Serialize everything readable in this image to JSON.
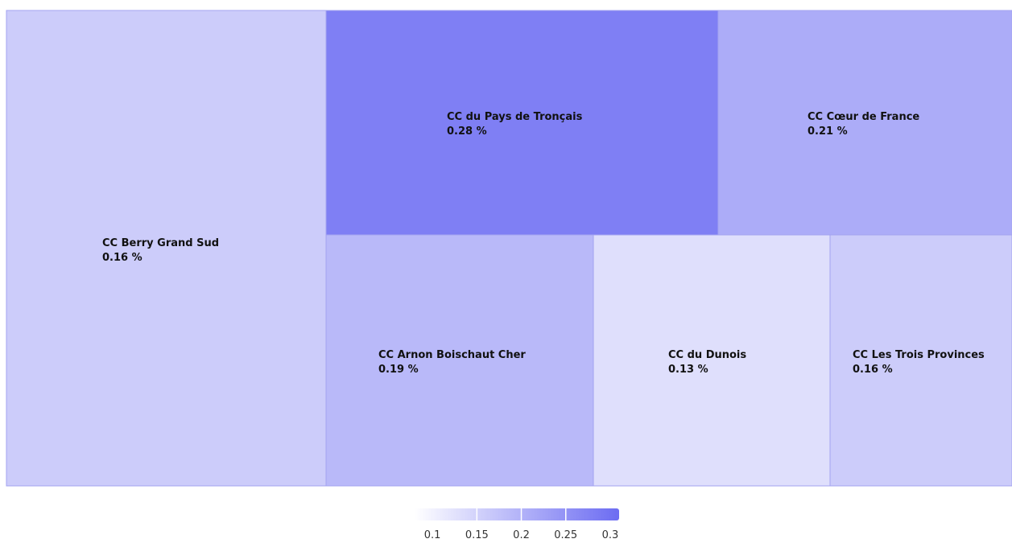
{
  "chart_data": {
    "type": "treemap",
    "title": "",
    "value_suffix": " %",
    "items": [
      {
        "name": "CC Berry Grand Sud",
        "value": 0.16,
        "label": "0.16 %"
      },
      {
        "name": "CC du Pays de Tronçais",
        "value": 0.28,
        "label": "0.28 %"
      },
      {
        "name": "CC Cœur de France",
        "value": 0.21,
        "label": "0.21 %"
      },
      {
        "name": "CC Arnon Boischaut Cher",
        "value": 0.19,
        "label": "0.19 %"
      },
      {
        "name": "CC du Dunois",
        "value": 0.13,
        "label": "0.13 %"
      },
      {
        "name": "CC Les Trois Provinces",
        "value": 0.16,
        "label": "0.16 %"
      }
    ],
    "color_scale": {
      "min": 0.08,
      "max": 0.31,
      "min_color": "#ffffff",
      "max_color": "#6c6cf2",
      "border_color": "#a3a3f0",
      "ticks": [
        0.1,
        0.15,
        0.2,
        0.25,
        0.3
      ],
      "tick_labels": [
        "0.1",
        "0.15",
        "0.2",
        "0.25",
        "0.3"
      ],
      "legend_position": "bottom-center"
    }
  }
}
